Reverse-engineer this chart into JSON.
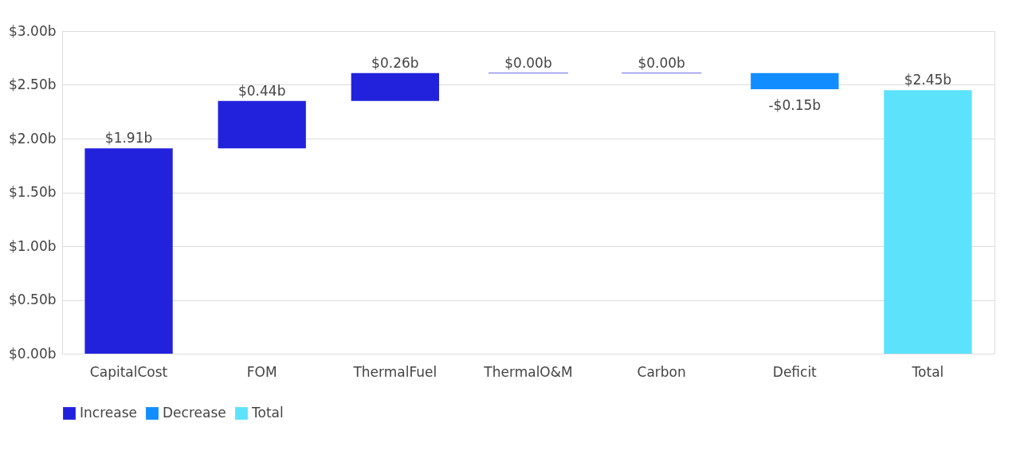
{
  "chart_data": {
    "type": "bar",
    "categories": [
      "CapitalCost",
      "FOM",
      "ThermalFuel",
      "ThermalO&M",
      "Carbon",
      "Deficit",
      "Total"
    ],
    "series": [
      {
        "name": "Increase",
        "color": "#2222dd",
        "base": [
          0,
          1.91,
          2.35,
          2.61,
          2.61,
          null,
          null
        ],
        "values": [
          1.91,
          0.44,
          0.26,
          0.0,
          0.0,
          null,
          null
        ],
        "value_labels": [
          "$1.91b",
          "$0.44b",
          "$0.26b",
          "$0.00b",
          "$0.00b",
          null,
          null
        ]
      },
      {
        "name": "Decrease",
        "color": "#118dff",
        "base": [
          null,
          null,
          null,
          null,
          null,
          2.61,
          null
        ],
        "values": [
          null,
          null,
          null,
          null,
          null,
          -0.15,
          null
        ],
        "value_labels": [
          null,
          null,
          null,
          null,
          null,
          "-$0.15b",
          null
        ]
      },
      {
        "name": "Total",
        "color": "#5ce3fb",
        "base": [
          null,
          null,
          null,
          null,
          null,
          null,
          0
        ],
        "values": [
          null,
          null,
          null,
          null,
          null,
          null,
          2.45
        ],
        "value_labels": [
          null,
          null,
          null,
          null,
          null,
          null,
          "$2.45b"
        ]
      }
    ],
    "ylim": [
      0,
      3
    ],
    "yticks": [
      {
        "value": 0,
        "label": "$0.00b"
      },
      {
        "value": 0.5,
        "label": "$0.50b"
      },
      {
        "value": 1,
        "label": "$1.00b"
      },
      {
        "value": 1.5,
        "label": "$1.50b"
      },
      {
        "value": 2,
        "label": "$2.00b"
      },
      {
        "value": 2.5,
        "label": "$2.50b"
      },
      {
        "value": 3,
        "label": "$3.00b"
      }
    ],
    "grid": "y",
    "legend": "bottom"
  }
}
